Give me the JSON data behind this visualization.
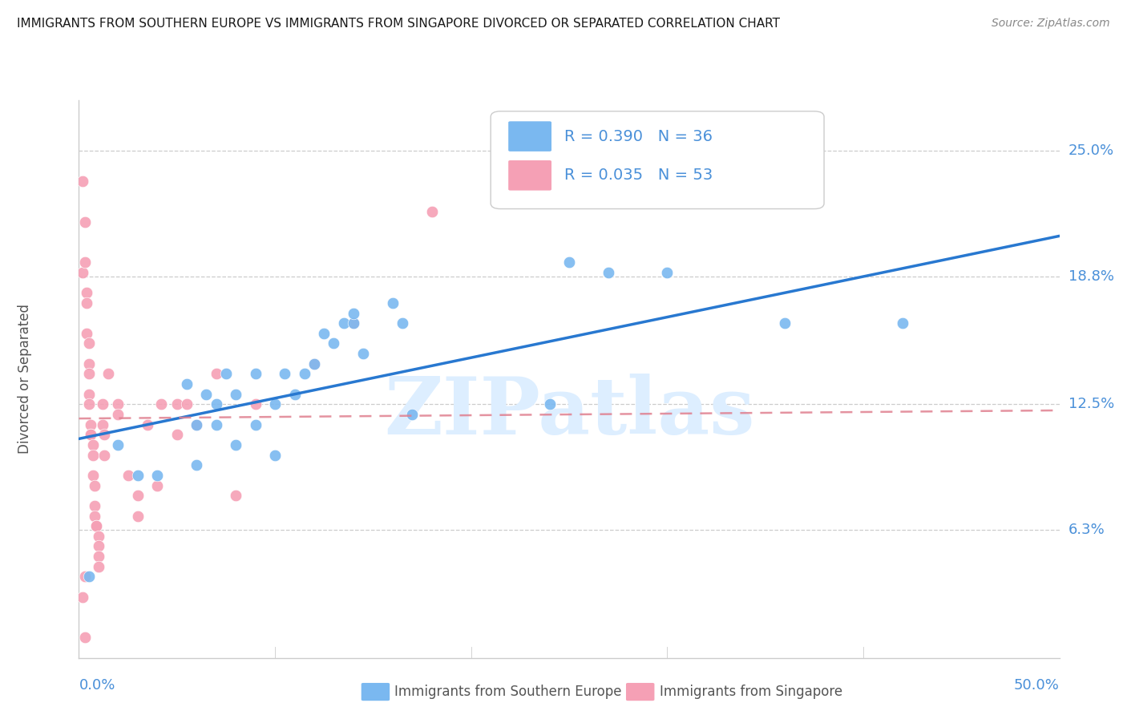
{
  "title": "IMMIGRANTS FROM SOUTHERN EUROPE VS IMMIGRANTS FROM SINGAPORE DIVORCED OR SEPARATED CORRELATION CHART",
  "source": "Source: ZipAtlas.com",
  "ylabel": "Divorced or Separated",
  "ytick_labels": [
    "25.0%",
    "18.8%",
    "12.5%",
    "6.3%"
  ],
  "ytick_values": [
    0.25,
    0.188,
    0.125,
    0.063
  ],
  "xtick_labels": [
    "0.0%",
    "50.0%"
  ],
  "xtick_values": [
    0.0,
    0.5
  ],
  "xlim": [
    0.0,
    0.5
  ],
  "ylim": [
    0.0,
    0.275
  ],
  "legend_blue_r": "R = 0.390",
  "legend_blue_n": "N = 36",
  "legend_pink_r": "R = 0.035",
  "legend_pink_n": "N = 53",
  "blue_color": "#7ab8f0",
  "pink_color": "#f5a0b5",
  "line_blue_color": "#2878d0",
  "line_pink_color": "#e08090",
  "grid_color": "#cccccc",
  "label_color": "#4a90d9",
  "watermark": "ZIPatlas",
  "watermark_color": "#ddeeff",
  "blue_line_x0": 0.0,
  "blue_line_y0": 0.108,
  "blue_line_x1": 0.5,
  "blue_line_y1": 0.208,
  "pink_line_x0": 0.0,
  "pink_line_y0": 0.118,
  "pink_line_x1": 0.5,
  "pink_line_y1": 0.122,
  "blue_scatter_x": [
    0.005,
    0.02,
    0.03,
    0.04,
    0.055,
    0.06,
    0.06,
    0.065,
    0.07,
    0.07,
    0.075,
    0.08,
    0.08,
    0.09,
    0.09,
    0.1,
    0.1,
    0.105,
    0.11,
    0.115,
    0.12,
    0.125,
    0.13,
    0.135,
    0.14,
    0.14,
    0.145,
    0.16,
    0.165,
    0.17,
    0.24,
    0.25,
    0.27,
    0.3,
    0.36,
    0.42
  ],
  "blue_scatter_y": [
    0.04,
    0.105,
    0.09,
    0.09,
    0.135,
    0.115,
    0.095,
    0.13,
    0.125,
    0.115,
    0.14,
    0.13,
    0.105,
    0.14,
    0.115,
    0.125,
    0.1,
    0.14,
    0.13,
    0.14,
    0.145,
    0.16,
    0.155,
    0.165,
    0.165,
    0.17,
    0.15,
    0.175,
    0.165,
    0.12,
    0.125,
    0.195,
    0.19,
    0.19,
    0.165,
    0.165
  ],
  "pink_scatter_x": [
    0.002,
    0.002,
    0.002,
    0.003,
    0.003,
    0.003,
    0.004,
    0.004,
    0.004,
    0.005,
    0.005,
    0.005,
    0.005,
    0.005,
    0.006,
    0.006,
    0.006,
    0.007,
    0.007,
    0.007,
    0.008,
    0.008,
    0.008,
    0.009,
    0.009,
    0.01,
    0.01,
    0.01,
    0.01,
    0.012,
    0.012,
    0.013,
    0.013,
    0.015,
    0.02,
    0.02,
    0.025,
    0.03,
    0.03,
    0.035,
    0.04,
    0.042,
    0.05,
    0.05,
    0.055,
    0.06,
    0.07,
    0.08,
    0.09,
    0.12,
    0.14,
    0.18,
    0.003
  ],
  "pink_scatter_y": [
    0.235,
    0.19,
    0.03,
    0.215,
    0.195,
    0.01,
    0.18,
    0.175,
    0.16,
    0.155,
    0.145,
    0.14,
    0.13,
    0.125,
    0.115,
    0.11,
    0.11,
    0.105,
    0.1,
    0.09,
    0.085,
    0.075,
    0.07,
    0.065,
    0.065,
    0.06,
    0.055,
    0.05,
    0.045,
    0.125,
    0.115,
    0.11,
    0.1,
    0.14,
    0.125,
    0.12,
    0.09,
    0.08,
    0.07,
    0.115,
    0.085,
    0.125,
    0.125,
    0.11,
    0.125,
    0.115,
    0.14,
    0.08,
    0.125,
    0.145,
    0.165,
    0.22,
    0.04
  ]
}
